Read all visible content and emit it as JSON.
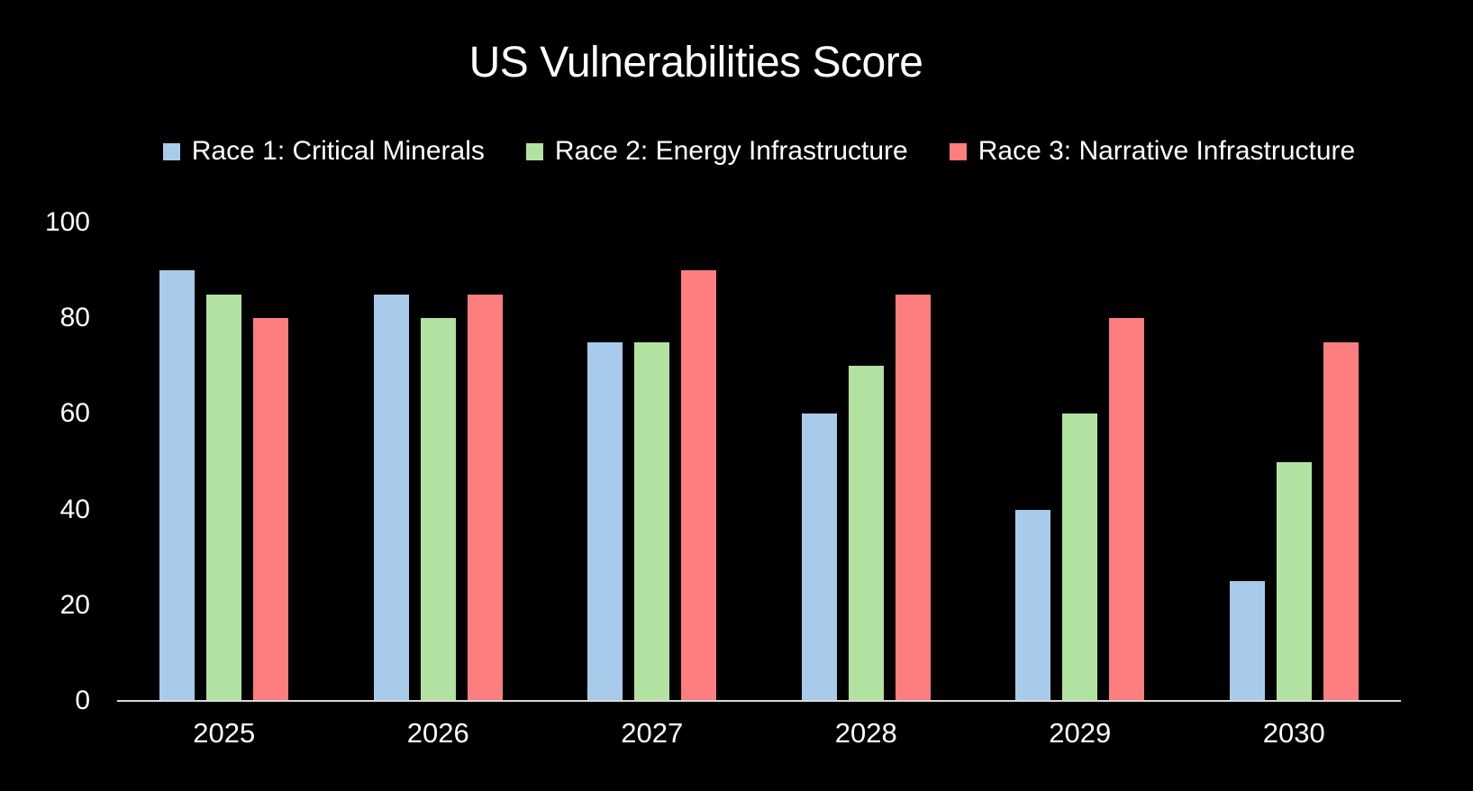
{
  "page": {
    "background": "#000000",
    "text_color": "#ffffff",
    "axis_line_color": "#d9d9d9"
  },
  "chart_data": {
    "type": "bar",
    "title": "US Vulnerabilities Score",
    "categories": [
      "2025",
      "2026",
      "2027",
      "2028",
      "2029",
      "2030"
    ],
    "series": [
      {
        "name": "Race 1: Critical Minerals",
        "color": "#A8CBEB",
        "values": [
          90,
          85,
          75,
          60,
          40,
          25
        ]
      },
      {
        "name": "Race 2: Energy Infrastructure",
        "color": "#B2E2A2",
        "values": [
          85,
          80,
          75,
          70,
          60,
          50
        ]
      },
      {
        "name": "Race 3: Narrative Infrastructure",
        "color": "#FD7E7E",
        "values": [
          80,
          85,
          90,
          85,
          80,
          75
        ]
      }
    ],
    "xlabel": "",
    "ylabel": "",
    "ylim": [
      0,
      100
    ],
    "yticks": [
      0,
      20,
      40,
      60,
      80,
      100
    ],
    "grid": false,
    "legend_position": "top"
  }
}
